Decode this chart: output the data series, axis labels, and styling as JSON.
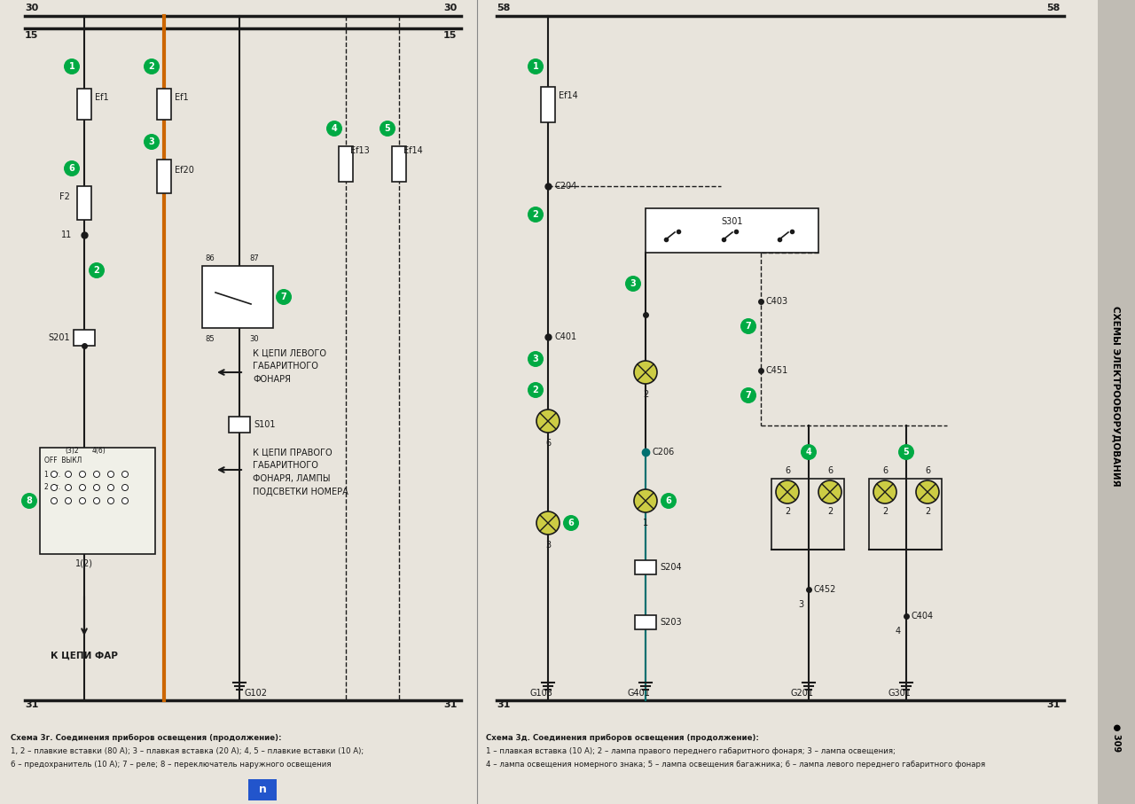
{
  "bg_color": "#d8d4cc",
  "page_bg": "#e8e4dc",
  "title_left": "Схема 3г. Соединения приборов освещения (продолжение):",
  "caption_left": "1, 2 – плавкие вставки (80 А); 3 – плавкая вставка (20 А); 4, 5 – плавкие вставки (10 А); 6 – предохранитель (10 А); 7 – реле; 8 – переключатель наружного освещения",
  "title_right": "Схема 3д. Соединения приборов освещения (продолжение):",
  "caption_right": "1 – плавкая вставка (10 А); 2 – лампа правого переднего габаритного фонаря; 3 – лампа освещения; 4 – лампа освещения номерного знака; 5 – лампа освещения багажника; 6 – лампа левого переднего габаритного фонаря",
  "sidebar_text": "СХЕМЫ ЭЛЕКТРООБОРУДОВАНИЯ",
  "page_num": "309",
  "fig_width": 12.8,
  "fig_height": 9.07
}
